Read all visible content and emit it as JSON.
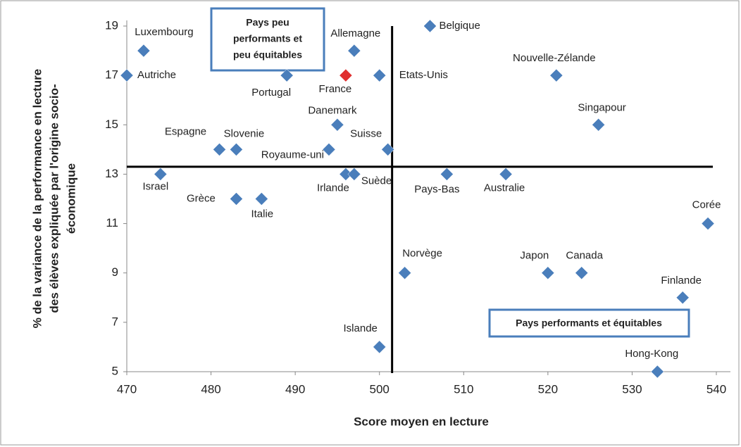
{
  "chart_data": {
    "type": "scatter",
    "x_label": "Score moyen en lecture",
    "y_label": [
      "% de la variance de la performance en lecture",
      "des élèves expliquée par l'origine socio-",
      "économique"
    ],
    "labels": [
      "Luxembourg",
      "Autriche",
      "Portugal",
      "France",
      "Allemagne",
      "Etats-Unis",
      "Belgique",
      "Nouvelle-Zélande",
      "Singapour",
      "Danemark",
      "Espagne",
      "Slovenie",
      "Royaume-uni",
      "Suisse",
      "Israel",
      "Irlande",
      "Suède",
      "Pays-Bas",
      "Australie",
      "Grèce",
      "Italie",
      "Corée",
      "Norvège",
      "Japon",
      "Canada",
      "Finlande",
      "Islande",
      "Hong-Kong"
    ],
    "x": [
      472,
      470,
      489,
      496,
      497,
      500,
      506,
      521,
      526,
      495,
      481,
      483,
      494,
      501,
      474,
      496,
      497,
      508,
      515,
      483,
      486,
      539,
      503,
      520,
      524,
      536,
      500,
      533
    ],
    "values": [
      18,
      17,
      17,
      17,
      18,
      17,
      19,
      17,
      15,
      15,
      14,
      14,
      14,
      14,
      13,
      13,
      13,
      13,
      13,
      12,
      12,
      11,
      9,
      9,
      9,
      8,
      6,
      5
    ],
    "colors": [
      "#4a7ebb",
      "#4a7ebb",
      "#4a7ebb",
      "#e03030",
      "#4a7ebb",
      "#4a7ebb",
      "#4a7ebb",
      "#4a7ebb",
      "#4a7ebb",
      "#4a7ebb",
      "#4a7ebb",
      "#4a7ebb",
      "#4a7ebb",
      "#4a7ebb",
      "#4a7ebb",
      "#4a7ebb",
      "#4a7ebb",
      "#4a7ebb",
      "#4a7ebb",
      "#4a7ebb",
      "#4a7ebb",
      "#4a7ebb",
      "#4a7ebb",
      "#4a7ebb",
      "#4a7ebb",
      "#4a7ebb",
      "#4a7ebb",
      "#4a7ebb"
    ],
    "reference_x": 501.5,
    "reference_y": 13.3,
    "xlim": [
      470,
      540
    ],
    "xticks": [
      470,
      480,
      490,
      500,
      510,
      520,
      530,
      540
    ],
    "ylim": [
      5,
      19
    ],
    "yticks": [
      5,
      7,
      9,
      11,
      13,
      15,
      17,
      19
    ],
    "annotations": [
      [
        "Pays peu",
        "performants et",
        "peu équitables"
      ],
      [
        "Pays performants et équitables"
      ]
    ]
  }
}
